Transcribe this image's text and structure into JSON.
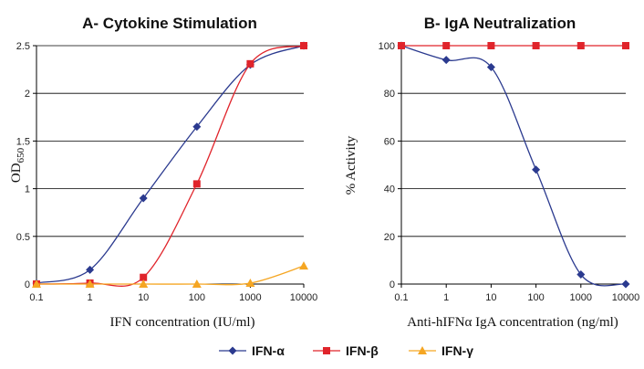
{
  "chart_data": [
    {
      "type": "line",
      "title": "A- Cytokine Stimulation",
      "xlabel": "IFN concentration (IU/ml)",
      "ylabel": "OD",
      "ylabel_sub": "650",
      "xscale": "log",
      "x_ticks": [
        "0.1",
        "1",
        "10",
        "100",
        "1000",
        "10000"
      ],
      "y_ticks": [
        "0",
        "0.5",
        "1",
        "1.5",
        "2",
        "2.5"
      ],
      "ylim": [
        0,
        2.5
      ],
      "xlim": [
        0.1,
        10000
      ],
      "grid": "horizontal",
      "series": [
        {
          "name": "IFN-α",
          "color": "#2b3a8f",
          "marker": "diamond",
          "points": [
            [
              0.1,
              0.01
            ],
            [
              1,
              0.15
            ],
            [
              10,
              0.9
            ],
            [
              100,
              1.65
            ],
            [
              1000,
              2.3
            ],
            [
              10000,
              2.5
            ]
          ]
        },
        {
          "name": "IFN-β",
          "color": "#e0242b",
          "marker": "square",
          "points": [
            [
              0.1,
              0.0
            ],
            [
              1,
              0.01
            ],
            [
              10,
              0.07
            ],
            [
              100,
              1.05
            ],
            [
              1000,
              2.31
            ],
            [
              10000,
              2.5
            ]
          ]
        },
        {
          "name": "IFN-γ",
          "color": "#f5a623",
          "marker": "triangle",
          "points": [
            [
              0.1,
              0.0
            ],
            [
              1,
              0.0
            ],
            [
              10,
              0.0
            ],
            [
              100,
              0.0
            ],
            [
              1000,
              0.01
            ],
            [
              10000,
              0.19
            ]
          ]
        }
      ]
    },
    {
      "type": "line",
      "title": "B- IgA Neutralization",
      "xlabel": "Anti-hIFNα IgA concentration (ng/ml)",
      "ylabel": "% Activity",
      "xscale": "log",
      "x_ticks": [
        "0.1",
        "1",
        "10",
        "100",
        "1000",
        "10000"
      ],
      "y_ticks": [
        "0",
        "20",
        "40",
        "60",
        "80",
        "100"
      ],
      "ylim": [
        0,
        100
      ],
      "xlim": [
        0.1,
        10000
      ],
      "grid": "horizontal",
      "series": [
        {
          "name": "IFN-α",
          "color": "#2b3a8f",
          "marker": "diamond",
          "points": [
            [
              0.1,
              100
            ],
            [
              1,
              94
            ],
            [
              10,
              91
            ],
            [
              100,
              48
            ],
            [
              1000,
              4
            ],
            [
              10000,
              0
            ]
          ]
        },
        {
          "name": "IFN-β",
          "color": "#e0242b",
          "marker": "square",
          "points": [
            [
              0.1,
              100
            ],
            [
              1,
              100
            ],
            [
              10,
              100
            ],
            [
              100,
              100
            ],
            [
              1000,
              100
            ],
            [
              10000,
              100
            ]
          ]
        }
      ]
    }
  ],
  "legend": {
    "placement": "bottom",
    "items": [
      {
        "label": "IFN-α",
        "color": "#2b3a8f",
        "marker": "diamond"
      },
      {
        "label": "IFN-β",
        "color": "#e0242b",
        "marker": "square"
      },
      {
        "label": "IFN-γ",
        "color": "#f5a623",
        "marker": "triangle"
      }
    ]
  }
}
